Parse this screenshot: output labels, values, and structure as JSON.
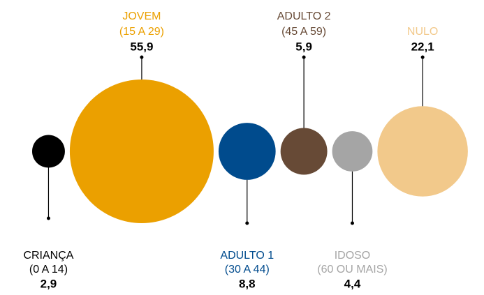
{
  "chart_data": {
    "type": "bubble",
    "categories": [
      "CRIANÇA",
      "JOVEM",
      "ADULTO 1",
      "ADULTO 2",
      "IDOSO",
      "NULO"
    ],
    "category_ranges": [
      "(0 A 14)",
      "(15 A 29)",
      "(30 A 44)",
      "(45 A 59)",
      "(60 OU MAIS)",
      null
    ],
    "values": [
      2.9,
      55.9,
      8.8,
      5.9,
      4.4,
      22.1
    ],
    "value_labels": [
      "2,9",
      "55,9",
      "8,8",
      "5,9",
      "4,4",
      "22,1"
    ],
    "colors": [
      "#000000",
      "#eba000",
      "#004b8d",
      "#674a36",
      "#a5a5a5",
      "#f2c98b"
    ]
  }
}
